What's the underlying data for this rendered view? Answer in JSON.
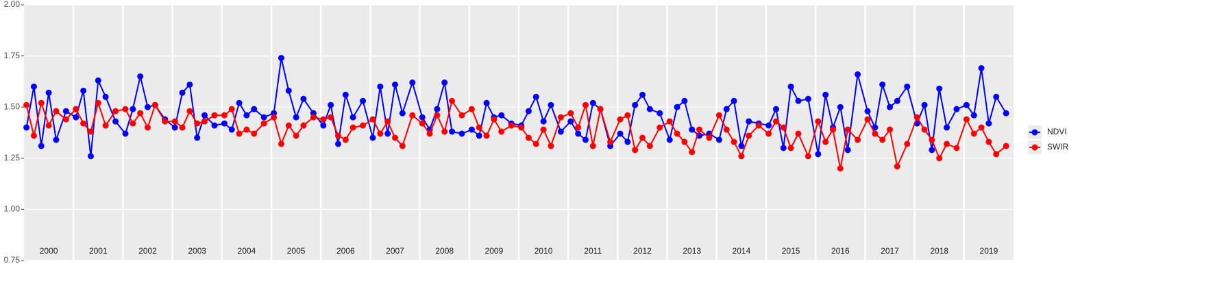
{
  "chart_data": {
    "type": "line",
    "ylim": [
      0.75,
      2.0
    ],
    "yticks": [
      {
        "value": 0.75,
        "label": "0.75"
      },
      {
        "value": 1.0,
        "label": "1.00"
      },
      {
        "value": 1.25,
        "label": "1.25"
      },
      {
        "value": 1.5,
        "label": "1.50"
      },
      {
        "value": 1.75,
        "label": "1.75"
      },
      {
        "value": 2.0,
        "label": "2.00"
      }
    ],
    "xlim": [
      2000,
      2020
    ],
    "xticks": [
      2001,
      2002,
      2003,
      2004,
      2005,
      2006,
      2007,
      2008,
      2009,
      2010,
      2011,
      2012,
      2013,
      2014,
      2015,
      2016,
      2017,
      2018,
      2019
    ],
    "annotations": [
      {
        "x": 2000.5,
        "text": "2000"
      },
      {
        "x": 2001.5,
        "text": "2001"
      },
      {
        "x": 2002.5,
        "text": "2002"
      },
      {
        "x": 2003.5,
        "text": "2003"
      },
      {
        "x": 2004.5,
        "text": "2004"
      },
      {
        "x": 2005.5,
        "text": "2005"
      },
      {
        "x": 2006.5,
        "text": "2006"
      },
      {
        "x": 2007.5,
        "text": "2007"
      },
      {
        "x": 2008.5,
        "text": "2008"
      },
      {
        "x": 2009.5,
        "text": "2009"
      },
      {
        "x": 2010.5,
        "text": "2010"
      },
      {
        "x": 2011.5,
        "text": "2011"
      },
      {
        "x": 2012.5,
        "text": "2012"
      },
      {
        "x": 2013.5,
        "text": "2013"
      },
      {
        "x": 2014.5,
        "text": "2014"
      },
      {
        "x": 2015.5,
        "text": "2015"
      },
      {
        "x": 2016.5,
        "text": "2016"
      },
      {
        "x": 2017.5,
        "text": "2017"
      },
      {
        "x": 2018.5,
        "text": "2018"
      },
      {
        "x": 2019.5,
        "text": "2019"
      }
    ],
    "grid": true,
    "legend": "right",
    "x": [
      2000.05,
      2000.2,
      2000.35,
      2000.5,
      2000.65,
      2000.85,
      2001.05,
      2001.2,
      2001.35,
      2001.5,
      2001.65,
      2001.85,
      2002.05,
      2002.2,
      2002.35,
      2002.5,
      2002.65,
      2002.85,
      2003.05,
      2003.2,
      2003.35,
      2003.5,
      2003.65,
      2003.85,
      2004.05,
      2004.2,
      2004.35,
      2004.5,
      2004.65,
      2004.85,
      2005.05,
      2005.2,
      2005.35,
      2005.5,
      2005.65,
      2005.85,
      2006.05,
      2006.2,
      2006.35,
      2006.5,
      2006.65,
      2006.85,
      2007.05,
      2007.2,
      2007.35,
      2007.5,
      2007.65,
      2007.85,
      2008.05,
      2008.2,
      2008.35,
      2008.5,
      2008.65,
      2008.85,
      2009.05,
      2009.2,
      2009.35,
      2009.5,
      2009.65,
      2009.85,
      2010.05,
      2010.2,
      2010.35,
      2010.5,
      2010.65,
      2010.85,
      2011.05,
      2011.2,
      2011.35,
      2011.5,
      2011.65,
      2011.85,
      2012.05,
      2012.2,
      2012.35,
      2012.5,
      2012.65,
      2012.85,
      2013.05,
      2013.2,
      2013.35,
      2013.5,
      2013.65,
      2013.85,
      2014.05,
      2014.2,
      2014.35,
      2014.5,
      2014.65,
      2014.85,
      2015.05,
      2015.2,
      2015.35,
      2015.5,
      2015.65,
      2015.85,
      2016.05,
      2016.2,
      2016.35,
      2016.5,
      2016.65,
      2016.85,
      2017.05,
      2017.2,
      2017.35,
      2017.5,
      2017.65,
      2017.85,
      2018.05,
      2018.2,
      2018.35,
      2018.5,
      2018.65,
      2018.85,
      2019.05,
      2019.2,
      2019.35,
      2019.5,
      2019.65,
      2019.85
    ],
    "series": [
      {
        "name": "NDVI",
        "color": "#0000ff",
        "values": [
          1.4,
          1.6,
          1.31,
          1.57,
          1.34,
          1.48,
          1.45,
          1.58,
          1.26,
          1.63,
          1.55,
          1.43,
          1.37,
          1.49,
          1.65,
          1.5,
          1.51,
          1.44,
          1.4,
          1.57,
          1.61,
          1.35,
          1.46,
          1.41,
          1.42,
          1.39,
          1.52,
          1.46,
          1.49,
          1.45,
          1.47,
          1.74,
          1.58,
          1.45,
          1.54,
          1.47,
          1.41,
          1.51,
          1.32,
          1.56,
          1.45,
          1.53,
          1.35,
          1.6,
          1.37,
          1.61,
          1.47,
          1.62,
          1.45,
          1.39,
          1.49,
          1.62,
          1.38,
          1.37,
          1.39,
          1.36,
          1.52,
          1.45,
          1.46,
          1.42,
          1.41,
          1.48,
          1.55,
          1.43,
          1.51,
          1.38,
          1.43,
          1.37,
          1.34,
          1.52,
          1.49,
          1.31,
          1.37,
          1.33,
          1.51,
          1.56,
          1.49,
          1.47,
          1.34,
          1.5,
          1.53,
          1.39,
          1.36,
          1.37,
          1.34,
          1.49,
          1.53,
          1.31,
          1.43,
          1.42,
          1.41,
          1.49,
          1.3,
          1.6,
          1.53,
          1.54,
          1.27,
          1.56,
          1.4,
          1.5,
          1.29,
          1.66,
          1.48,
          1.4,
          1.61,
          1.5,
          1.53,
          1.6,
          1.42,
          1.51,
          1.29,
          1.59,
          1.4,
          1.49,
          1.51,
          1.46,
          1.69,
          1.42,
          1.55,
          1.47
        ]
      },
      {
        "name": "SWIR",
        "color": "#ff0000",
        "values": [
          1.51,
          1.36,
          1.52,
          1.41,
          1.48,
          1.44,
          1.49,
          1.42,
          1.38,
          1.52,
          1.41,
          1.48,
          1.49,
          1.42,
          1.47,
          1.4,
          1.51,
          1.43,
          1.43,
          1.4,
          1.48,
          1.42,
          1.43,
          1.46,
          1.46,
          1.49,
          1.37,
          1.39,
          1.37,
          1.42,
          1.45,
          1.32,
          1.41,
          1.36,
          1.41,
          1.45,
          1.44,
          1.45,
          1.36,
          1.34,
          1.4,
          1.41,
          1.44,
          1.37,
          1.43,
          1.35,
          1.31,
          1.46,
          1.42,
          1.37,
          1.46,
          1.38,
          1.53,
          1.46,
          1.49,
          1.4,
          1.36,
          1.44,
          1.38,
          1.41,
          1.4,
          1.35,
          1.32,
          1.39,
          1.31,
          1.45,
          1.47,
          1.4,
          1.51,
          1.31,
          1.49,
          1.33,
          1.44,
          1.46,
          1.29,
          1.35,
          1.31,
          1.4,
          1.43,
          1.37,
          1.33,
          1.28,
          1.39,
          1.35,
          1.46,
          1.39,
          1.33,
          1.26,
          1.36,
          1.41,
          1.37,
          1.43,
          1.4,
          1.3,
          1.37,
          1.26,
          1.43,
          1.33,
          1.39,
          1.2,
          1.39,
          1.34,
          1.44,
          1.37,
          1.34,
          1.39,
          1.21,
          1.32,
          1.45,
          1.39,
          1.34,
          1.25,
          1.32,
          1.3,
          1.44,
          1.37,
          1.4,
          1.33,
          1.27,
          1.31
        ]
      }
    ]
  }
}
